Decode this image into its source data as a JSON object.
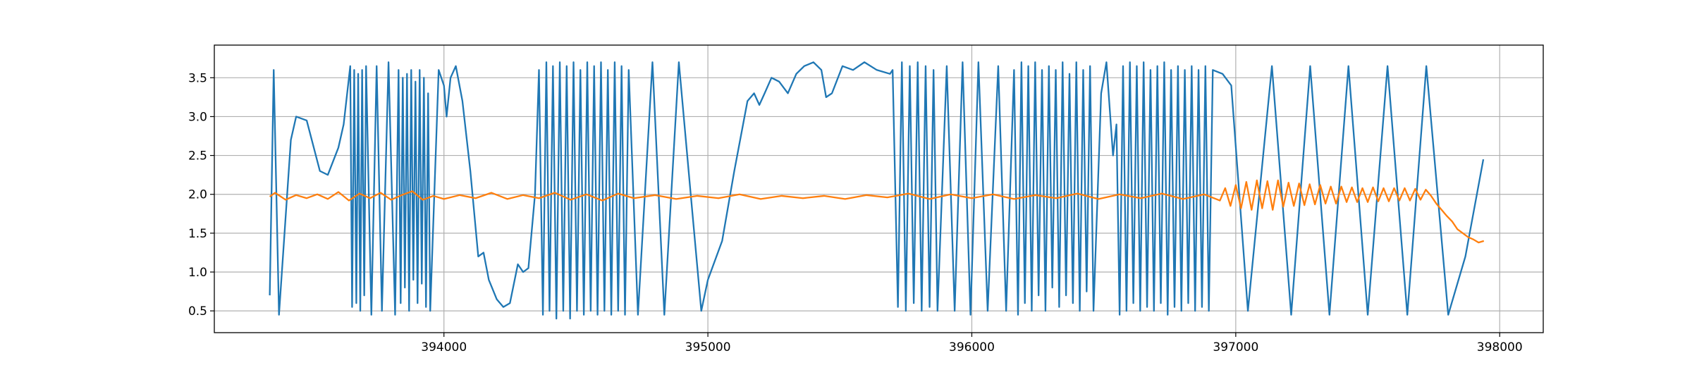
{
  "chart_data": {
    "type": "line",
    "xlim": [
      393130,
      398165
    ],
    "ylim": [
      0.22,
      3.92
    ],
    "xticks": [
      394000,
      395000,
      396000,
      397000,
      398000
    ],
    "yticks": [
      0.5,
      {
        "value": 1,
        "label": "1.0"
      },
      1.5,
      {
        "value": 2,
        "label": "2.0"
      },
      2.5,
      {
        "value": 3,
        "label": "3.0"
      },
      3.5
    ],
    "grid": true,
    "series": [
      {
        "color": "#1f77b4",
        "x": [
          393340,
          393355,
          393375,
          393420,
          393440,
          393480,
          393530,
          393560,
          393600,
          393620,
          393645,
          393652,
          393660,
          393668,
          393675,
          393683,
          393690,
          393698,
          393705,
          393725,
          393745,
          393765,
          393790,
          393815,
          393828,
          393836,
          393844,
          393852,
          393860,
          393868,
          393876,
          393884,
          393892,
          393900,
          393908,
          393916,
          393924,
          393932,
          393940,
          393948,
          393980,
          394000,
          394010,
          394025,
          394045,
          394070,
          394100,
          394130,
          394150,
          394170,
          394200,
          394225,
          394250,
          394280,
          394300,
          394320,
          394345,
          394360,
          394375,
          394388,
          394400,
          394413,
          394426,
          394439,
          394452,
          394465,
          394478,
          394491,
          394504,
          394517,
          394530,
          394543,
          394556,
          394569,
          394582,
          394595,
          394608,
          394621,
          394634,
          394647,
          394660,
          394673,
          394686,
          394700,
          394735,
          394790,
          394835,
          394890,
          394935,
          394975,
          395000,
          395054,
          395100,
          395150,
          395175,
          395195,
          395215,
          395241,
          395270,
          395303,
          395335,
          395365,
          395400,
          395430,
          395448,
          395470,
          395510,
          395550,
          395593,
          395640,
          395690,
          395700,
          395720,
          395735,
          395750,
          395765,
          395780,
          395795,
          395810,
          395825,
          395840,
          395855,
          395870,
          395905,
          395935,
          395965,
          395995,
          396025,
          396060,
          396100,
          396130,
          396160,
          396175,
          396188,
          396201,
          396214,
          396227,
          396240,
          396253,
          396266,
          396279,
          396292,
          396305,
          396318,
          396331,
          396344,
          396357,
          396370,
          396383,
          396396,
          396409,
          396422,
          396435,
          396448,
          396461,
          396490,
          396510,
          396535,
          396548,
          396560,
          396573,
          396586,
          396599,
          396612,
          396625,
          396638,
          396651,
          396664,
          396677,
          396690,
          396703,
          396716,
          396729,
          396742,
          396755,
          396768,
          396781,
          396794,
          396807,
          396820,
          396833,
          396846,
          396859,
          396872,
          396885,
          396898,
          396913,
          396950,
          396983,
          397046,
          397137,
          397210,
          397282,
          397355,
          397427,
          397500,
          397575,
          397650,
          397722,
          397805,
          397870,
          397938
        ],
        "values": [
          0.7,
          3.6,
          0.45,
          2.7,
          3.0,
          2.95,
          2.3,
          2.25,
          2.6,
          2.9,
          3.65,
          0.55,
          3.6,
          0.6,
          3.55,
          0.5,
          3.6,
          0.7,
          3.65,
          0.45,
          3.65,
          0.5,
          3.7,
          0.45,
          3.6,
          0.6,
          3.5,
          0.8,
          3.55,
          0.5,
          3.6,
          0.9,
          3.45,
          0.6,
          3.6,
          0.85,
          3.5,
          0.55,
          3.3,
          0.5,
          3.6,
          3.4,
          3.0,
          3.5,
          3.65,
          3.2,
          2.3,
          1.2,
          1.25,
          0.9,
          0.65,
          0.55,
          0.6,
          1.1,
          1.0,
          1.05,
          2.0,
          3.6,
          0.45,
          3.7,
          0.5,
          3.65,
          0.4,
          3.7,
          0.5,
          3.65,
          0.4,
          3.7,
          0.5,
          3.6,
          0.45,
          3.7,
          0.5,
          3.65,
          0.45,
          3.7,
          0.5,
          3.6,
          0.45,
          3.7,
          0.5,
          3.65,
          0.45,
          3.6,
          0.45,
          3.7,
          0.45,
          3.7,
          2.0,
          0.5,
          0.9,
          1.4,
          2.3,
          3.2,
          3.3,
          3.15,
          3.3,
          3.5,
          3.45,
          3.3,
          3.55,
          3.65,
          3.7,
          3.6,
          3.25,
          3.3,
          3.65,
          3.6,
          3.7,
          3.6,
          3.55,
          3.6,
          0.55,
          3.7,
          0.5,
          3.65,
          0.6,
          3.7,
          0.5,
          3.65,
          0.55,
          3.6,
          0.5,
          3.65,
          0.5,
          3.7,
          0.45,
          3.7,
          0.5,
          3.65,
          0.5,
          3.6,
          0.45,
          3.7,
          0.6,
          3.65,
          0.5,
          3.7,
          0.7,
          3.6,
          0.5,
          3.65,
          0.8,
          3.6,
          0.55,
          3.7,
          0.7,
          3.55,
          0.6,
          3.7,
          0.5,
          3.6,
          0.75,
          3.65,
          0.5,
          3.3,
          3.7,
          2.5,
          2.9,
          0.45,
          3.65,
          0.5,
          3.7,
          0.6,
          3.65,
          0.5,
          3.7,
          0.55,
          3.6,
          0.5,
          3.65,
          0.6,
          3.7,
          0.45,
          3.6,
          0.55,
          3.65,
          0.5,
          3.6,
          0.6,
          3.65,
          0.5,
          3.6,
          0.55,
          3.65,
          0.5,
          3.6,
          3.55,
          3.4,
          0.5,
          3.65,
          0.45,
          3.65,
          0.45,
          3.65,
          0.45,
          3.65,
          0.45,
          3.65,
          0.45,
          1.2,
          2.45
        ]
      },
      {
        "color": "#ff7f0e",
        "x": [
          393340,
          393360,
          393400,
          393440,
          393480,
          393520,
          393560,
          393600,
          393640,
          393680,
          393720,
          393760,
          393800,
          393840,
          393880,
          393920,
          393960,
          394000,
          394060,
          394120,
          394180,
          394240,
          394300,
          394360,
          394420,
          394480,
          394540,
          394600,
          394660,
          394720,
          394800,
          394880,
          394960,
          395040,
          395120,
          395200,
          395280,
          395360,
          395440,
          395520,
          395600,
          395680,
          395760,
          395840,
          395920,
          396000,
          396080,
          396160,
          396240,
          396320,
          396400,
          396480,
          396560,
          396640,
          396720,
          396800,
          396880,
          396940,
          396960,
          396980,
          397000,
          397020,
          397040,
          397060,
          397080,
          397100,
          397120,
          397140,
          397160,
          397180,
          397200,
          397220,
          397240,
          397260,
          397280,
          397300,
          397320,
          397340,
          397360,
          397380,
          397400,
          397420,
          397440,
          397460,
          397480,
          397500,
          397520,
          397540,
          397560,
          397580,
          397600,
          397620,
          397640,
          397660,
          397680,
          397700,
          397720,
          397740,
          397760,
          397780,
          397800,
          397820,
          397840,
          397860,
          397880,
          397900,
          397920,
          397940
        ],
        "values": [
          1.97,
          2.02,
          1.93,
          1.99,
          1.95,
          2.0,
          1.94,
          2.03,
          1.92,
          2.01,
          1.95,
          2.02,
          1.93,
          1.99,
          2.04,
          1.93,
          1.98,
          1.94,
          1.99,
          1.95,
          2.02,
          1.94,
          1.99,
          1.95,
          2.02,
          1.93,
          2.0,
          1.92,
          2.01,
          1.95,
          1.99,
          1.94,
          1.98,
          1.95,
          2.0,
          1.94,
          1.98,
          1.95,
          1.98,
          1.94,
          1.99,
          1.96,
          2.01,
          1.94,
          2.0,
          1.95,
          2.0,
          1.94,
          1.99,
          1.95,
          2.01,
          1.94,
          2.0,
          1.95,
          2.01,
          1.94,
          2.0,
          1.92,
          2.08,
          1.85,
          2.12,
          1.82,
          2.16,
          1.8,
          2.18,
          1.82,
          2.17,
          1.8,
          2.18,
          1.84,
          2.15,
          1.85,
          2.14,
          1.86,
          2.13,
          1.87,
          2.12,
          1.88,
          2.1,
          1.88,
          2.1,
          1.9,
          2.09,
          1.9,
          2.08,
          1.9,
          2.09,
          1.91,
          2.08,
          1.91,
          2.08,
          1.92,
          2.08,
          1.92,
          2.07,
          1.93,
          2.06,
          1.98,
          1.88,
          1.8,
          1.72,
          1.65,
          1.55,
          1.5,
          1.45,
          1.42,
          1.38,
          1.4
        ]
      }
    ]
  }
}
